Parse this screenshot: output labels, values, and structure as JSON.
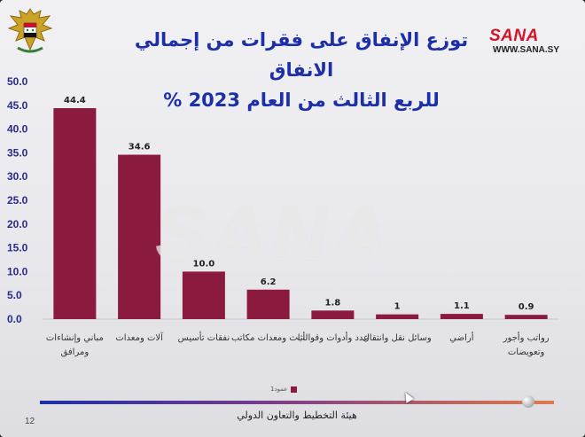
{
  "header": {
    "title_line1": "توزع الإنفاق على فقرات من إجمالي الانفاق",
    "title_line2": "للربع الثالث من العام 2023 %",
    "brand": "SANA",
    "brand_url": "WWW.SANA.SY"
  },
  "watermark": "SANA",
  "legend": {
    "label": "عمود1"
  },
  "footer": {
    "organization": "هيئة التخطيط والتعاون الدولي",
    "page_number": "12"
  },
  "colors": {
    "bar": "#8a1a3e",
    "title": "#1c2fa8",
    "brand": "#d3142a"
  },
  "chart_data": {
    "type": "bar",
    "title": "توزع الإنفاق على فقرات من إجمالي الانفاق للربع الثالث من العام 2023 %",
    "categories": [
      [
        "مباني وإنشاءات",
        "ومرافق"
      ],
      [
        "آلات ومعدات"
      ],
      [
        "نفقات تأسيس"
      ],
      [
        "أثاث ومعدات مكاتب"
      ],
      [
        "عدد وأدوات وقوالب"
      ],
      [
        "وسائل نقل وانتقال"
      ],
      [
        "أراضي"
      ],
      [
        "رواتب وأجور",
        "وتعويضات"
      ]
    ],
    "values": [
      44.4,
      34.6,
      10.0,
      6.2,
      1.8,
      1,
      1.1,
      0.9
    ],
    "value_labels": [
      "44.4",
      "34.6",
      "10.0",
      "6.2",
      "1.8",
      "1",
      "1.1",
      "0.9"
    ],
    "yticks": [
      "0.0",
      "5.0",
      "10.0",
      "15.0",
      "20.0",
      "25.0",
      "30.0",
      "35.0",
      "40.0",
      "45.0",
      "50.0"
    ],
    "ylim": [
      0,
      50
    ],
    "grid": false,
    "legend_placement": "bottom"
  }
}
